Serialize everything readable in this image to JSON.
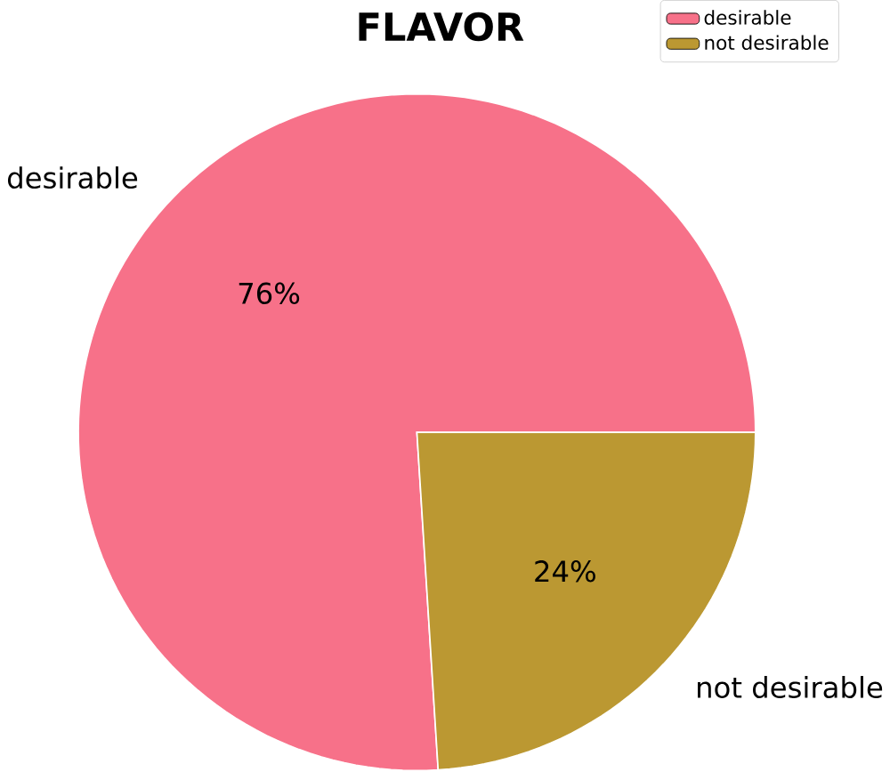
{
  "chart_data": {
    "type": "pie",
    "title": "FLAVOR",
    "categories": [
      "desirable",
      "not desirable"
    ],
    "values": [
      76,
      24
    ],
    "colors": [
      "#f77189",
      "#bb9832"
    ],
    "value_labels": [
      "76%",
      "24%"
    ],
    "legend": "top right"
  }
}
